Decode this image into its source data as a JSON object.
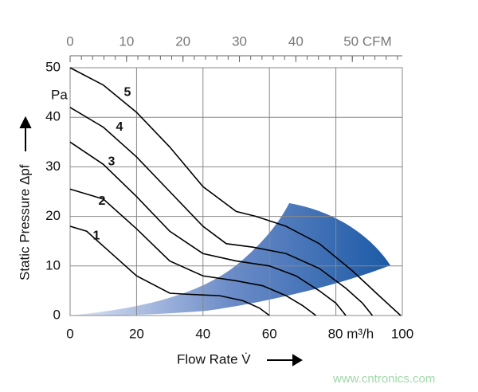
{
  "chart_data": {
    "type": "line",
    "x_label": "Flow Rate V̇",
    "y_label": "Static Pressure Δpf",
    "y_unit": "Pa",
    "watermark": "www.cntronics.com",
    "xlim": [
      0,
      100
    ],
    "xticks": [
      0,
      20,
      40,
      60,
      {
        "value": 80,
        "label": "80 m³/h"
      },
      100
    ],
    "ylim": [
      0,
      50
    ],
    "yticks": [
      0,
      10,
      20,
      30,
      40,
      50
    ],
    "x2lim": [
      0,
      58.86
    ],
    "x2ticks": [
      0,
      10,
      20,
      30,
      40,
      {
        "value": 50,
        "label": "50 CFM"
      }
    ],
    "x2minor": 2,
    "grid": true,
    "series": [
      {
        "name": "1",
        "color": "#000000",
        "x": [
          0,
          5,
          10,
          20,
          30,
          35,
          45,
          52,
          57,
          60
        ],
        "values": [
          18,
          17,
          14,
          8,
          4.5,
          4.3,
          4,
          3,
          1.5,
          0
        ]
      },
      {
        "name": "2",
        "color": "#000000",
        "x": [
          0,
          10,
          20,
          30,
          40,
          50,
          58,
          65,
          70,
          74
        ],
        "values": [
          25.5,
          23.5,
          17.5,
          11,
          8,
          7,
          6,
          4,
          2,
          0
        ]
      },
      {
        "name": "3",
        "color": "#000000",
        "x": [
          0,
          10,
          20,
          30,
          40,
          50,
          60,
          68,
          75,
          80,
          83
        ],
        "values": [
          35,
          30.5,
          24,
          17,
          12.5,
          11,
          10,
          8,
          5,
          2.5,
          0
        ]
      },
      {
        "name": "4",
        "color": "#000000",
        "x": [
          0,
          10,
          20,
          30,
          40,
          47,
          55,
          65,
          75,
          83,
          88,
          91
        ],
        "values": [
          42,
          38,
          32,
          25,
          18,
          14.5,
          13.8,
          12.5,
          9.5,
          5.5,
          2.5,
          0
        ]
      },
      {
        "name": "5",
        "color": "#000000",
        "x": [
          0,
          10,
          20,
          30,
          40,
          50,
          56,
          65,
          75,
          85,
          93,
          99.5
        ],
        "values": [
          50,
          46.5,
          41,
          34,
          26,
          21,
          20,
          18,
          14.5,
          9,
          4,
          0
        ]
      }
    ]
  }
}
